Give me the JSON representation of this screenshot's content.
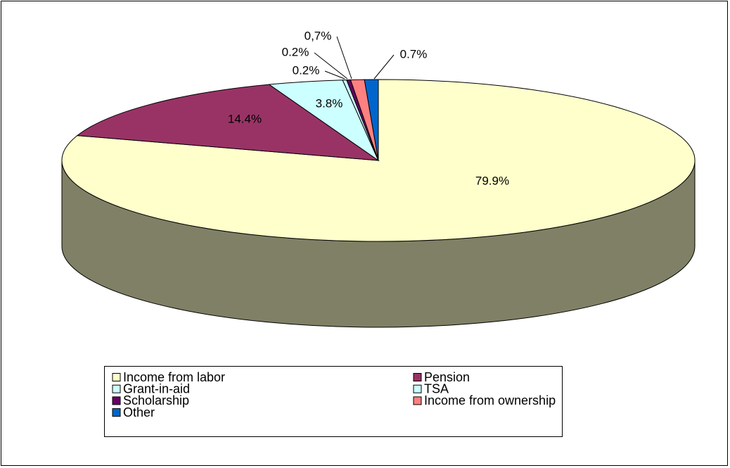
{
  "chart_data": {
    "type": "pie",
    "categories": [
      "Income from labor",
      "Pension",
      "Grant-in-aid",
      "TSA",
      "Scholarship",
      "Income from ownership",
      "Other"
    ],
    "values": [
      79.9,
      14.4,
      3.8,
      0.2,
      0.2,
      0.7,
      0.7
    ],
    "value_labels": [
      "79.9%",
      "14.4%",
      "3.8%",
      "0.2%",
      "0.2%",
      "0,7%",
      "0.7%"
    ],
    "colors": [
      "#FFFFCC",
      "#993366",
      "#CCFFFF",
      "#CCFFFF",
      "#660066",
      "#FF8080",
      "#0066CC"
    ],
    "legend": "bottom"
  }
}
